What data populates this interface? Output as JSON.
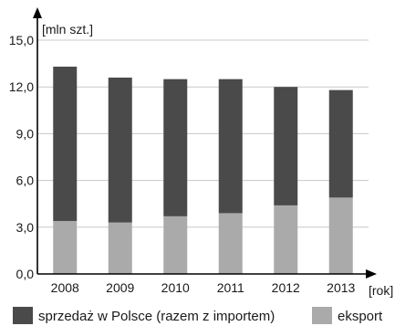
{
  "chart_data": {
    "type": "bar",
    "stacked": true,
    "categories": [
      "2008",
      "2009",
      "2010",
      "2011",
      "2012",
      "2013"
    ],
    "series": [
      {
        "name": "eksport",
        "values": [
          3.4,
          3.3,
          3.7,
          3.9,
          4.4,
          4.9
        ],
        "color": "#aaaaaa"
      },
      {
        "name": "sprzedaż w Polsce (razem z importem)",
        "values": [
          9.9,
          9.3,
          8.8,
          8.6,
          7.6,
          6.9
        ],
        "color": "#4a4a4a"
      }
    ],
    "ylim": [
      0,
      15
    ],
    "yticks": [
      "0,0",
      "3,0",
      "6,0",
      "9,0",
      "12,0",
      "15,0"
    ],
    "ylabel": "[mln szt.]",
    "xlabel": "[rok]",
    "grid": true,
    "legend_position": "bottom"
  }
}
